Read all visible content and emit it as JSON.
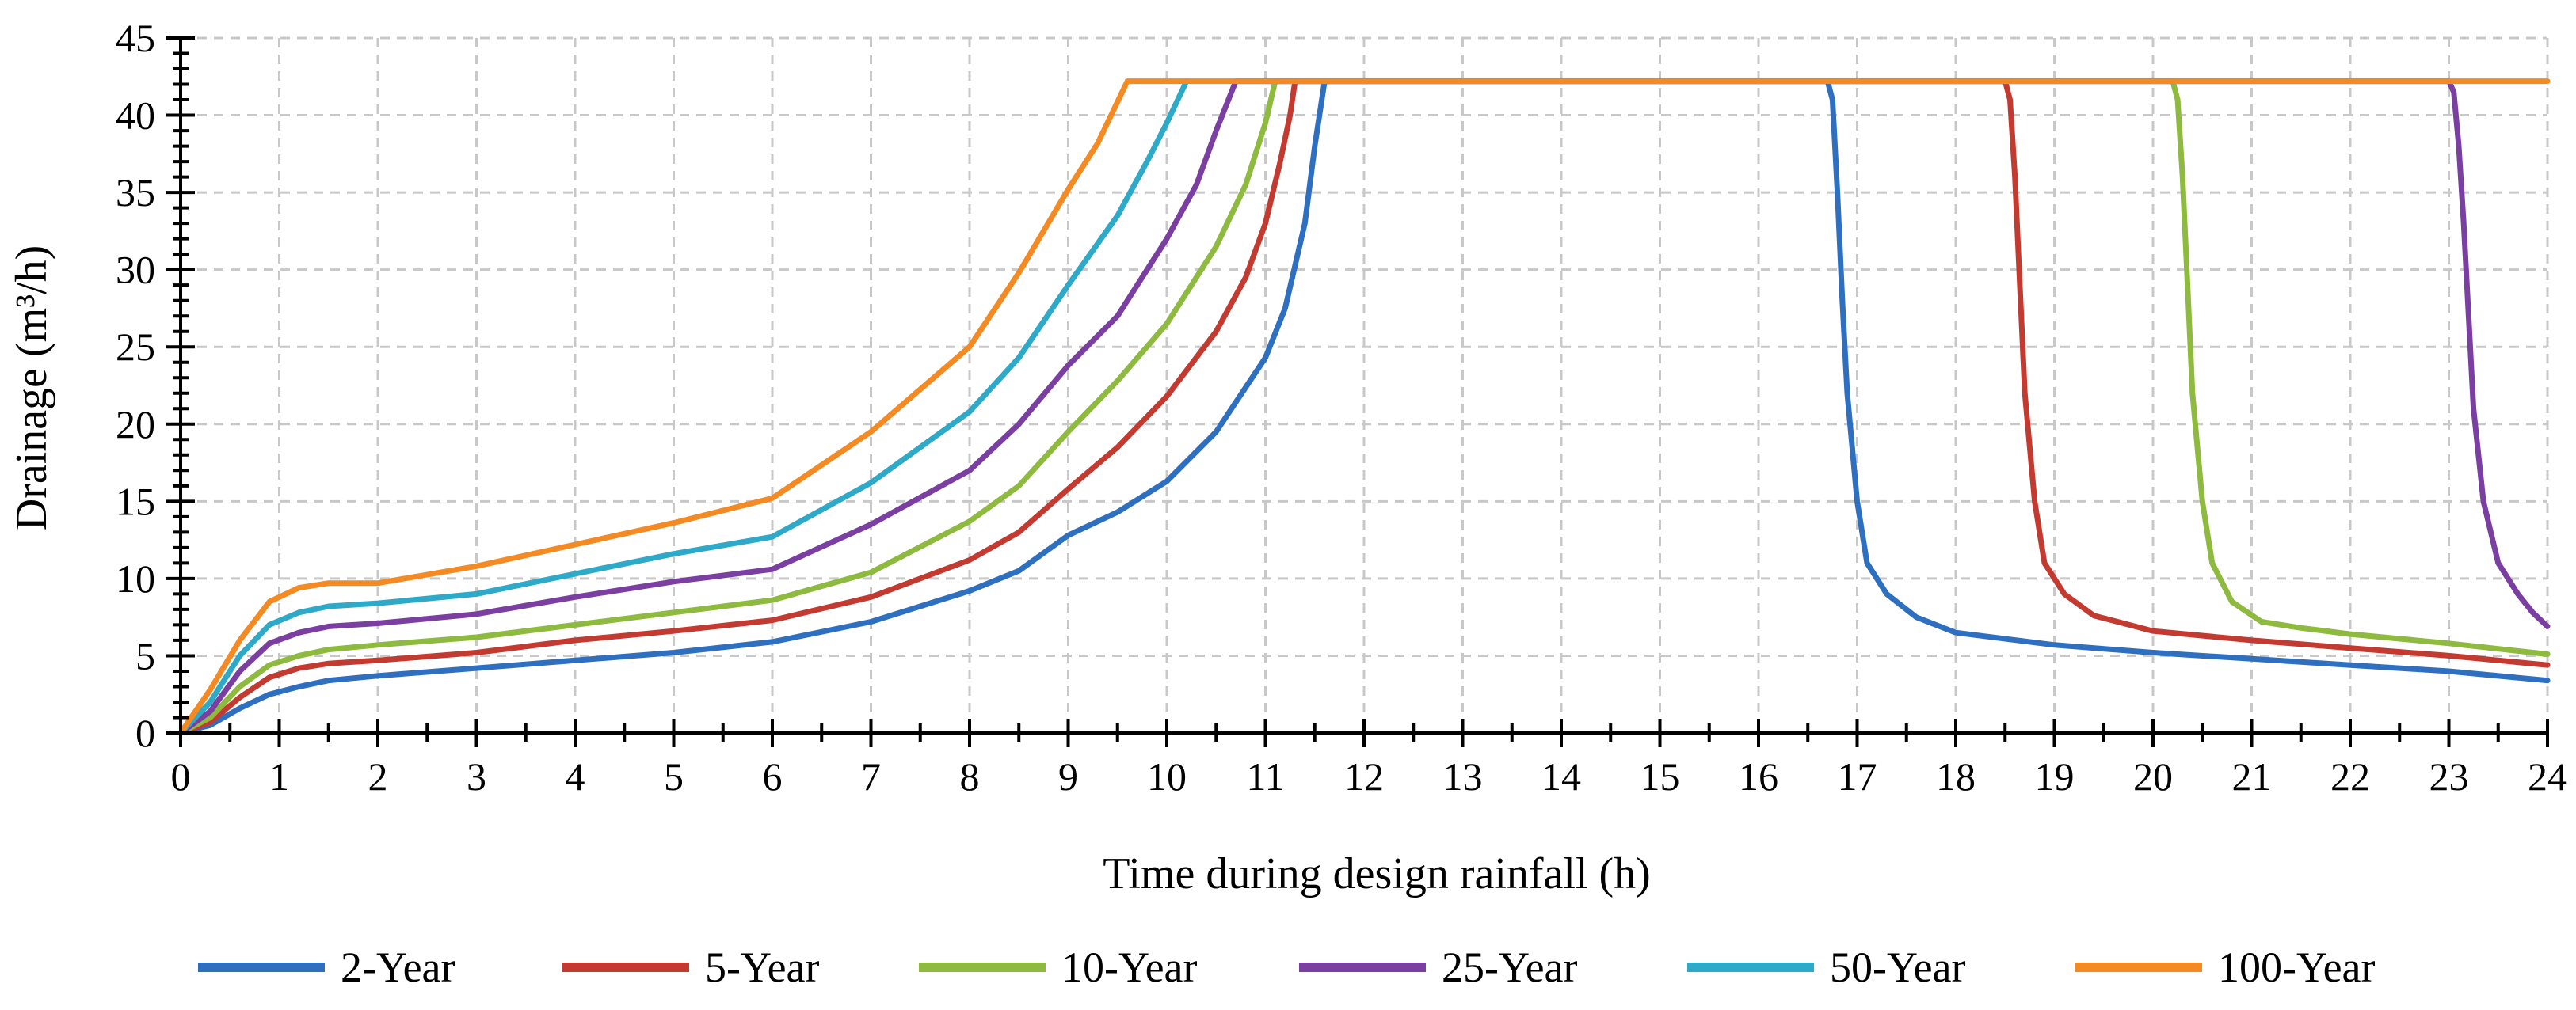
{
  "chart_data": {
    "type": "line",
    "title": "",
    "xlabel": "Time during design rainfall (h)",
    "ylabel": "Drainage (m³/h)",
    "xlim": [
      0,
      24
    ],
    "ylim": [
      0,
      45
    ],
    "xticks": [
      "0",
      "1",
      "2",
      "3",
      "4",
      "5",
      "6",
      "7",
      "8",
      "9",
      "10",
      "11",
      "12",
      "13",
      "14",
      "15",
      "16",
      "17",
      "18",
      "19",
      "20",
      "21",
      "22",
      "23",
      "24"
    ],
    "yticks": [
      "0",
      "5",
      "10",
      "15",
      "20",
      "25",
      "30",
      "35",
      "40",
      "45"
    ],
    "grid": true,
    "legend_position": "bottom",
    "series": [
      {
        "name": "2-Year",
        "color": "#2e6fc0",
        "points": [
          [
            0,
            0
          ],
          [
            0.3,
            0.5
          ],
          [
            0.6,
            1.6
          ],
          [
            0.9,
            2.5
          ],
          [
            1.2,
            3.0
          ],
          [
            1.5,
            3.4
          ],
          [
            2,
            3.7
          ],
          [
            3,
            4.2
          ],
          [
            4,
            4.7
          ],
          [
            5,
            5.2
          ],
          [
            6,
            5.9
          ],
          [
            7,
            7.2
          ],
          [
            8,
            9.2
          ],
          [
            8.5,
            10.5
          ],
          [
            9,
            12.8
          ],
          [
            9.5,
            14.3
          ],
          [
            10,
            16.3
          ],
          [
            10.5,
            19.5
          ],
          [
            11,
            24.3
          ],
          [
            11.2,
            27.5
          ],
          [
            11.4,
            33.0
          ],
          [
            11.5,
            38.0
          ],
          [
            11.6,
            42.2
          ],
          [
            16.7,
            42.2
          ],
          [
            16.75,
            41.0
          ],
          [
            16.8,
            35.0
          ],
          [
            16.85,
            28.0
          ],
          [
            16.9,
            22.0
          ],
          [
            17,
            15.0
          ],
          [
            17.1,
            11.0
          ],
          [
            17.3,
            9.0
          ],
          [
            17.6,
            7.5
          ],
          [
            18,
            6.5
          ],
          [
            19,
            5.7
          ],
          [
            20,
            5.2
          ],
          [
            21,
            4.8
          ],
          [
            22,
            4.4
          ],
          [
            23,
            4.0
          ],
          [
            24,
            3.4
          ]
        ]
      },
      {
        "name": "5-Year",
        "color": "#c23a30",
        "points": [
          [
            0,
            0
          ],
          [
            0.3,
            0.7
          ],
          [
            0.6,
            2.3
          ],
          [
            0.9,
            3.6
          ],
          [
            1.2,
            4.2
          ],
          [
            1.5,
            4.5
          ],
          [
            2,
            4.7
          ],
          [
            3,
            5.2
          ],
          [
            4,
            6.0
          ],
          [
            5,
            6.6
          ],
          [
            6,
            7.3
          ],
          [
            7,
            8.8
          ],
          [
            8,
            11.2
          ],
          [
            8.5,
            13.0
          ],
          [
            9,
            15.8
          ],
          [
            9.5,
            18.5
          ],
          [
            10,
            21.8
          ],
          [
            10.5,
            26.0
          ],
          [
            10.8,
            29.5
          ],
          [
            11,
            33.0
          ],
          [
            11.15,
            37.0
          ],
          [
            11.25,
            40.0
          ],
          [
            11.3,
            42.2
          ],
          [
            18.5,
            42.2
          ],
          [
            18.55,
            41.0
          ],
          [
            18.6,
            36.0
          ],
          [
            18.65,
            29.0
          ],
          [
            18.7,
            22.0
          ],
          [
            18.8,
            15.0
          ],
          [
            18.9,
            11.0
          ],
          [
            19.1,
            9.0
          ],
          [
            19.4,
            7.6
          ],
          [
            20,
            6.6
          ],
          [
            21,
            6.0
          ],
          [
            22,
            5.5
          ],
          [
            23,
            5.0
          ],
          [
            24,
            4.4
          ]
        ]
      },
      {
        "name": "10-Year",
        "color": "#8dba3f",
        "points": [
          [
            0,
            0
          ],
          [
            0.3,
            1.0
          ],
          [
            0.6,
            3.0
          ],
          [
            0.9,
            4.4
          ],
          [
            1.2,
            5.0
          ],
          [
            1.5,
            5.4
          ],
          [
            2,
            5.7
          ],
          [
            3,
            6.2
          ],
          [
            4,
            7.0
          ],
          [
            5,
            7.8
          ],
          [
            6,
            8.6
          ],
          [
            7,
            10.4
          ],
          [
            8,
            13.7
          ],
          [
            8.5,
            16.0
          ],
          [
            9,
            19.5
          ],
          [
            9.5,
            22.8
          ],
          [
            10,
            26.5
          ],
          [
            10.5,
            31.5
          ],
          [
            10.8,
            35.5
          ],
          [
            11,
            39.5
          ],
          [
            11.1,
            42.2
          ],
          [
            20.2,
            42.2
          ],
          [
            20.25,
            41.0
          ],
          [
            20.3,
            36.0
          ],
          [
            20.35,
            29.0
          ],
          [
            20.4,
            22.0
          ],
          [
            20.5,
            15.0
          ],
          [
            20.6,
            11.0
          ],
          [
            20.8,
            8.5
          ],
          [
            21.1,
            7.2
          ],
          [
            21.5,
            6.8
          ],
          [
            22,
            6.4
          ],
          [
            23,
            5.8
          ],
          [
            24,
            5.1
          ]
        ]
      },
      {
        "name": "25-Year",
        "color": "#7a3fa0",
        "points": [
          [
            0,
            0
          ],
          [
            0.3,
            1.4
          ],
          [
            0.6,
            4.0
          ],
          [
            0.9,
            5.8
          ],
          [
            1.2,
            6.5
          ],
          [
            1.5,
            6.9
          ],
          [
            2,
            7.1
          ],
          [
            3,
            7.7
          ],
          [
            4,
            8.8
          ],
          [
            5,
            9.8
          ],
          [
            6,
            10.6
          ],
          [
            7,
            13.5
          ],
          [
            8,
            17.0
          ],
          [
            8.5,
            20.0
          ],
          [
            9,
            23.8
          ],
          [
            9.5,
            27.0
          ],
          [
            10,
            32.0
          ],
          [
            10.3,
            35.5
          ],
          [
            10.5,
            39.0
          ],
          [
            10.7,
            42.2
          ],
          [
            23.0,
            42.2
          ],
          [
            23.05,
            41.5
          ],
          [
            23.1,
            38.0
          ],
          [
            23.15,
            33.0
          ],
          [
            23.2,
            27.0
          ],
          [
            23.25,
            21.0
          ],
          [
            23.35,
            15.0
          ],
          [
            23.5,
            11.0
          ],
          [
            23.7,
            9.0
          ],
          [
            23.85,
            7.8
          ],
          [
            24,
            6.9
          ]
        ]
      },
      {
        "name": "50-Year",
        "color": "#2ea9c8",
        "points": [
          [
            0,
            0
          ],
          [
            0.3,
            2.0
          ],
          [
            0.6,
            5.0
          ],
          [
            0.9,
            7.0
          ],
          [
            1.2,
            7.8
          ],
          [
            1.5,
            8.2
          ],
          [
            2,
            8.4
          ],
          [
            3,
            9.0
          ],
          [
            4,
            10.3
          ],
          [
            5,
            11.6
          ],
          [
            6,
            12.7
          ],
          [
            7,
            16.2
          ],
          [
            8,
            20.8
          ],
          [
            8.5,
            24.3
          ],
          [
            9,
            29.0
          ],
          [
            9.5,
            33.5
          ],
          [
            9.8,
            37.0
          ],
          [
            10,
            39.5
          ],
          [
            10.2,
            42.2
          ]
        ]
      },
      {
        "name": "100-Year",
        "color": "#f48a23",
        "points": [
          [
            0,
            0
          ],
          [
            0.3,
            2.8
          ],
          [
            0.6,
            6.0
          ],
          [
            0.9,
            8.5
          ],
          [
            1.2,
            9.4
          ],
          [
            1.5,
            9.7
          ],
          [
            2,
            9.7
          ],
          [
            3,
            10.8
          ],
          [
            4,
            12.2
          ],
          [
            5,
            13.6
          ],
          [
            6,
            15.2
          ],
          [
            7,
            19.5
          ],
          [
            8,
            25.0
          ],
          [
            8.5,
            29.8
          ],
          [
            9,
            35.2
          ],
          [
            9.3,
            38.2
          ],
          [
            9.6,
            42.2
          ],
          [
            24,
            42.2
          ]
        ]
      }
    ]
  }
}
